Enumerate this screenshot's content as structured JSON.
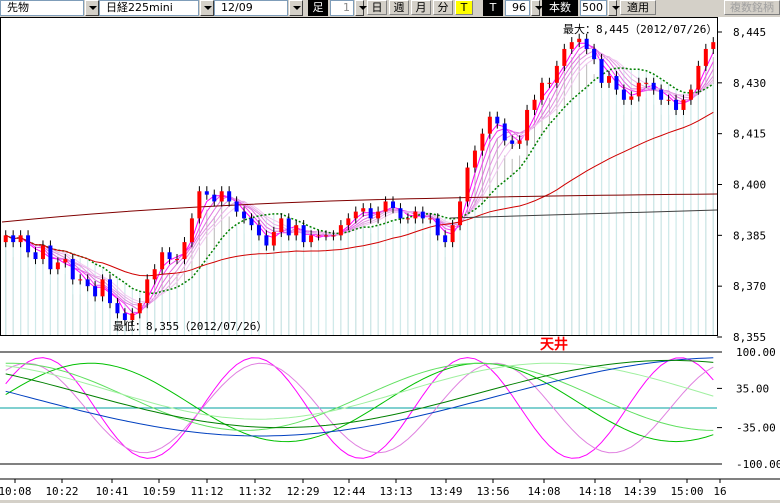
{
  "toolbar": {
    "market": "先物",
    "product": "日経225mini",
    "contract": "12/09",
    "foot_label": "足",
    "interval_value": "1",
    "day_button": "日",
    "week_button": "週",
    "month_button": "月",
    "minute_button": "分",
    "t_button": "T",
    "t_label": "T",
    "count_value": "96",
    "count_label": "本数",
    "bars_value": "500",
    "apply_button": "適用",
    "multi_button": "複数銘柄"
  },
  "chart_data": {
    "type": "candlestick",
    "price_axis": {
      "ticks": [
        "8,445",
        "8,430",
        "8,415",
        "8,400",
        "8,385",
        "8,370",
        "8,355"
      ],
      "ylim": [
        8350,
        8450
      ]
    },
    "oscillator_axis": {
      "ticks": [
        "100.00",
        "35.00",
        "-35.00",
        "-100.00"
      ],
      "ylim": [
        -100,
        100
      ]
    },
    "time_ticks": [
      "10:08",
      "10:22",
      "10:41",
      "10:59",
      "11:12",
      "11:32",
      "12:29",
      "12:44",
      "13:13",
      "13:49",
      "13:56",
      "14:08",
      "14:18",
      "14:39",
      "15:00",
      "16"
    ],
    "high_annotation": "最大：8,445（2012/07/26）",
    "low_annotation": "最低：8,355（2012/07/26）",
    "signal_label": "天井",
    "close_prices": [
      8385,
      8383,
      8385,
      8380,
      8378,
      8382,
      8375,
      8377,
      8378,
      8372,
      8372,
      8370,
      8367,
      8372,
      8365,
      8362,
      8360,
      8362,
      8365,
      8372,
      8375,
      8380,
      8378,
      8378,
      8383,
      8390,
      8398,
      8397,
      8395,
      8398,
      8395,
      8392,
      8390,
      8388,
      8385,
      8382,
      8386,
      8390,
      8385,
      8388,
      8383,
      8385,
      8385,
      8385,
      8385,
      8388,
      8390,
      8392,
      8393,
      8390,
      8392,
      8395,
      8393,
      8390,
      8390,
      8392,
      8390,
      8390,
      8385,
      8383,
      8388,
      8395,
      8405,
      8410,
      8415,
      8420,
      8418,
      8413,
      8412,
      8413,
      8422,
      8425,
      8430,
      8430,
      8435,
      8440,
      8442,
      8443,
      8440,
      8437,
      8430,
      8432,
      8428,
      8425,
      8426,
      8430,
      8430,
      8428,
      8425,
      8425,
      8422,
      8425,
      8428,
      8435,
      8440,
      8442
    ]
  }
}
